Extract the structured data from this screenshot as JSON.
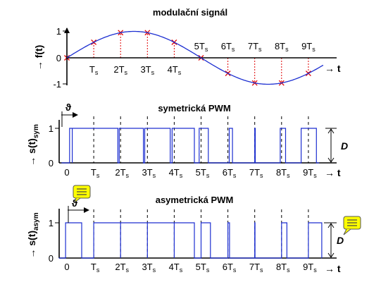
{
  "colors": {
    "signal": "#1d2fd1",
    "sample_marker": "#e00000",
    "note_icon": "#ffff00"
  },
  "panels": {
    "modulation": {
      "title": "modulační signál",
      "y_label": "→ f(t)",
      "x_label": "→ t",
      "y_ticks": [
        "1",
        "0",
        "-1"
      ],
      "t_ticks": [
        "0",
        "T",
        "2T",
        "3T",
        "4T",
        "5T",
        "6T",
        "7T",
        "8T",
        "9T"
      ],
      "tick_subscript": "s"
    },
    "symmetric": {
      "title": "symetrická PWM",
      "y_label": "→ s(t)",
      "y_subscript": "sym",
      "x_label": "→ t",
      "y_ticks": [
        "1",
        "0"
      ],
      "t_ticks": [
        "0",
        "T",
        "2T",
        "3T",
        "4T",
        "5T",
        "6T",
        "7T",
        "8T",
        "9T"
      ],
      "tick_subscript": "s",
      "theta_label": "ϑ",
      "depth_label": "D"
    },
    "asymmetric": {
      "title": "asymetrická PWM",
      "y_label": "→ s(t)",
      "y_subscript": "asym",
      "x_label": "→ t",
      "y_ticks": [
        "1",
        "0"
      ],
      "t_ticks": [
        "0",
        "T",
        "2T",
        "3T",
        "4T",
        "5T",
        "6T",
        "7T",
        "8T",
        "9T"
      ],
      "tick_subscript": "s",
      "theta_label": "ϑ",
      "depth_label": "D"
    }
  },
  "chart_data": {
    "type": "line",
    "signal": {
      "amplitude": 1,
      "period_Ts": 10,
      "sample_times_Ts": [
        0,
        1,
        2,
        3,
        4,
        5,
        6,
        7,
        8,
        9
      ]
    },
    "symmetric_pulses": [
      [
        0.1,
        0.2
      ],
      [
        0.2,
        1.9
      ],
      [
        1.95,
        2.85
      ],
      [
        2.9,
        3.85
      ],
      [
        3.92,
        4.75
      ],
      [
        4.93,
        5.27
      ],
      [
        6.05,
        6.17
      ],
      [
        7.0,
        7.02
      ],
      [
        7.95,
        8.15
      ],
      [
        8.73,
        9.3
      ]
    ],
    "asymmetric_pulses": [
      [
        -0.05,
        0.55
      ],
      [
        1.0,
        2.0
      ],
      [
        2.0,
        3.0
      ],
      [
        3.0,
        4.0
      ],
      [
        4.0,
        4.75
      ],
      [
        5.0,
        5.35
      ],
      [
        6.0,
        6.06
      ],
      [
        7.0,
        7.01
      ],
      [
        8.0,
        8.2
      ],
      [
        9.0,
        9.5
      ]
    ]
  }
}
